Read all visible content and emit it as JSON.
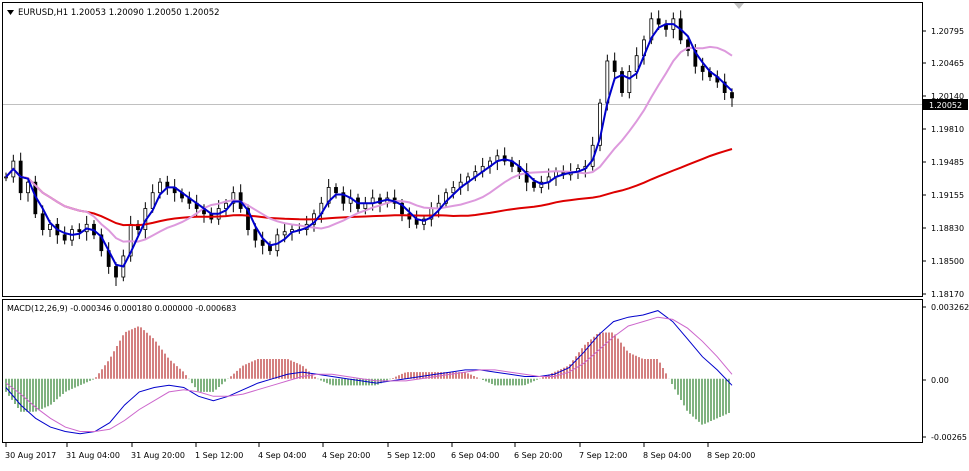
{
  "main": {
    "symbol": "EURUSD,H1",
    "ohlc": "1.20053 1.20090 1.20050 1.20052",
    "header": "EURUSD,H1  1.20053 1.20090 1.20050 1.20052",
    "price_labels": [
      "1.20795",
      "1.20465",
      "1.20140",
      "1.19810",
      "1.19485",
      "1.19155",
      "1.18830",
      "1.18500",
      "1.18170"
    ],
    "current_price": "1.20052",
    "colors": {
      "candle": "#000000",
      "fast_ma": "#0000cc",
      "mid_ma": "#dd99dd",
      "slow_ma": "#dd0000",
      "bid_line": "#c0c0c0",
      "price_tag_bg": "#000000"
    }
  },
  "macd": {
    "title": "MACD(12,26,9) -0.000346 0.000180 0.000000 -0.000683",
    "scale_labels": [
      "0.003262",
      "0.00",
      "-0.00265"
    ],
    "colors": {
      "hist_pos": "#aa0000",
      "hist_neg": "#006600",
      "macd_line": "#0000cc",
      "signal_line": "#cc66cc"
    }
  },
  "time_labels": [
    "30 Aug 2017",
    "31 Aug 04:00",
    "31 Aug 20:00",
    "1 Sep 12:00",
    "4 Sep 04:00",
    "4 Sep 20:00",
    "5 Sep 12:00",
    "6 Sep 04:00",
    "6 Sep 20:00",
    "7 Sep 12:00",
    "8 Sep 04:00",
    "8 Sep 20:00"
  ],
  "chart_data": {
    "type": "candlestick",
    "symbol": "EURUSD",
    "timeframe": "H1",
    "ylim": [
      1.1817,
      1.2095
    ],
    "close_series_approx": [
      1.193,
      1.1945,
      1.1915,
      1.1925,
      1.1895,
      1.188,
      1.1885,
      1.1875,
      1.187,
      1.188,
      1.1878,
      1.1885,
      1.1875,
      1.186,
      1.1845,
      1.1835,
      1.1855,
      1.1885,
      1.188,
      1.19,
      1.1915,
      1.1925,
      1.192,
      1.1915,
      1.191,
      1.1905,
      1.19,
      1.1895,
      1.189,
      1.19,
      1.1905,
      1.1915,
      1.19,
      1.188,
      1.187,
      1.1865,
      1.186,
      1.1875,
      1.1878,
      1.188,
      1.188,
      1.1885,
      1.1895,
      1.1905,
      1.192,
      1.1915,
      1.1905,
      1.191,
      1.19,
      1.1905,
      1.191,
      1.1905,
      1.191,
      1.1905,
      1.1895,
      1.189,
      1.1885,
      1.189,
      1.19,
      1.1905,
      1.1915,
      1.192,
      1.1925,
      1.193,
      1.1935,
      1.194,
      1.1945,
      1.195,
      1.1945,
      1.194,
      1.1935,
      1.1925,
      1.192,
      1.1925,
      1.193,
      1.1935,
      1.1932,
      1.1935,
      1.1938,
      1.194,
      1.196,
      1.2,
      1.204,
      1.203,
      1.201,
      1.203,
      1.2045,
      1.206,
      1.208,
      1.2075,
      1.207,
      1.208,
      1.206,
      1.205,
      1.2035,
      1.203,
      1.2025,
      1.202,
      1.201,
      1.2005
    ],
    "ma_fast_color": "#0000cc",
    "ma_mid_color": "#dd99dd",
    "ma_slow_color": "#dd0000",
    "macd": {
      "ylim": [
        -0.00265,
        0.003262
      ],
      "values_approx": [
        -0.0004,
        -0.0012,
        -0.0018,
        -0.0022,
        -0.0024,
        -0.0025,
        -0.0024,
        -0.002,
        -0.0012,
        -0.0006,
        -0.0004,
        -0.0003,
        -0.0004,
        -0.0008,
        -0.001,
        -0.0008,
        -0.0005,
        -0.0002,
        0.0,
        0.0002,
        0.0003,
        0.0002,
        0.0001,
        0.0,
        -0.0001,
        -0.0002,
        -0.0001,
        0.0,
        0.0001,
        0.0002,
        0.0003,
        0.0004,
        0.0004,
        0.0003,
        0.0002,
        0.0001,
        0.0001,
        0.0002,
        0.0005,
        0.0012,
        0.002,
        0.0026,
        0.0028,
        0.0029,
        0.0031,
        0.0026,
        0.0018,
        0.001,
        0.0004,
        -0.0003
      ],
      "signal_approx": [
        -0.0002,
        -0.0007,
        -0.0013,
        -0.0018,
        -0.0022,
        -0.0024,
        -0.0024,
        -0.0023,
        -0.0019,
        -0.0014,
        -0.001,
        -0.0006,
        -0.0005,
        -0.0006,
        -0.0008,
        -0.0008,
        -0.0007,
        -0.0005,
        -0.0003,
        -0.0001,
        0.0001,
        0.0002,
        0.0002,
        0.0001,
        0.0,
        -0.0001,
        -0.0001,
        -0.0001,
        0.0,
        0.0001,
        0.0002,
        0.0003,
        0.0004,
        0.0004,
        0.0003,
        0.0002,
        0.0001,
        0.0001,
        0.0003,
        0.0007,
        0.0013,
        0.0019,
        0.0024,
        0.0026,
        0.0028,
        0.0027,
        0.0023,
        0.0017,
        0.001,
        0.0002
      ],
      "last_values": {
        "macd": -0.000346,
        "signal": 0.00018,
        "zero": 0.0,
        "hist": -0.000683
      }
    }
  }
}
